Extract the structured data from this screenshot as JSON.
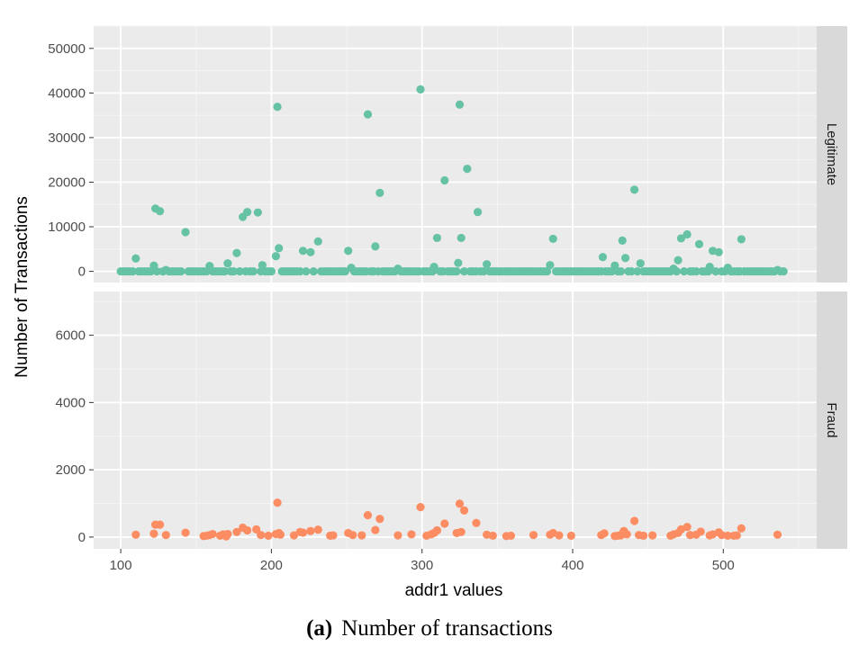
{
  "caption": {
    "label": "(a)",
    "text": "Number of transactions"
  },
  "chart_data": {
    "type": "scatter",
    "xlabel": "addr1 values",
    "ylabel": "Number of Transactions",
    "xlim": [
      82,
      562
    ],
    "x_ticks": [
      100,
      200,
      300,
      400,
      500
    ],
    "grid": true,
    "panels": [
      {
        "name": "Legitimate",
        "color": "#66c2a5",
        "ylim": [
          -2500,
          55000
        ],
        "y_ticks": [
          0,
          10000,
          20000,
          30000,
          40000,
          50000
        ],
        "points": [
          [
            100,
            0
          ],
          [
            102,
            0
          ],
          [
            104,
            0
          ],
          [
            106,
            0
          ],
          [
            108,
            0
          ],
          [
            110,
            2900
          ],
          [
            112,
            0
          ],
          [
            114,
            0
          ],
          [
            116,
            0
          ],
          [
            118,
            0
          ],
          [
            120,
            0
          ],
          [
            122,
            1300
          ],
          [
            123,
            14100
          ],
          [
            124,
            0
          ],
          [
            126,
            13500
          ],
          [
            128,
            0
          ],
          [
            130,
            300
          ],
          [
            132,
            0
          ],
          [
            134,
            0
          ],
          [
            136,
            0
          ],
          [
            138,
            0
          ],
          [
            140,
            0
          ],
          [
            143,
            8800
          ],
          [
            145,
            0
          ],
          [
            147,
            0
          ],
          [
            149,
            0
          ],
          [
            151,
            0
          ],
          [
            153,
            0
          ],
          [
            155,
            0
          ],
          [
            157,
            0
          ],
          [
            159,
            1200
          ],
          [
            161,
            0
          ],
          [
            163,
            0
          ],
          [
            165,
            0
          ],
          [
            167,
            0
          ],
          [
            169,
            0
          ],
          [
            171,
            1800
          ],
          [
            173,
            0
          ],
          [
            175,
            0
          ],
          [
            177,
            4100
          ],
          [
            179,
            0
          ],
          [
            181,
            12200
          ],
          [
            183,
            0
          ],
          [
            184,
            13300
          ],
          [
            186,
            0
          ],
          [
            188,
            0
          ],
          [
            191,
            13200
          ],
          [
            193,
            0
          ],
          [
            194,
            1400
          ],
          [
            196,
            0
          ],
          [
            198,
            0
          ],
          [
            200,
            0
          ],
          [
            203,
            3400
          ],
          [
            204,
            36900
          ],
          [
            205,
            5200
          ],
          [
            207,
            0
          ],
          [
            209,
            0
          ],
          [
            211,
            0
          ],
          [
            213,
            0
          ],
          [
            215,
            0
          ],
          [
            217,
            0
          ],
          [
            219,
            0
          ],
          [
            221,
            4600
          ],
          [
            223,
            0
          ],
          [
            226,
            4300
          ],
          [
            228,
            0
          ],
          [
            231,
            6700
          ],
          [
            233,
            0
          ],
          [
            235,
            0
          ],
          [
            237,
            0
          ],
          [
            239,
            0
          ],
          [
            241,
            0
          ],
          [
            243,
            0
          ],
          [
            245,
            0
          ],
          [
            247,
            0
          ],
          [
            249,
            0
          ],
          [
            251,
            4600
          ],
          [
            253,
            800
          ],
          [
            255,
            0
          ],
          [
            257,
            0
          ],
          [
            259,
            0
          ],
          [
            261,
            0
          ],
          [
            263,
            0
          ],
          [
            264,
            35200
          ],
          [
            266,
            0
          ],
          [
            268,
            0
          ],
          [
            269,
            5600
          ],
          [
            271,
            0
          ],
          [
            272,
            17600
          ],
          [
            274,
            0
          ],
          [
            276,
            0
          ],
          [
            278,
            0
          ],
          [
            280,
            0
          ],
          [
            282,
            0
          ],
          [
            284,
            600
          ],
          [
            286,
            0
          ],
          [
            288,
            0
          ],
          [
            290,
            0
          ],
          [
            292,
            0
          ],
          [
            294,
            0
          ],
          [
            296,
            0
          ],
          [
            298,
            0
          ],
          [
            299,
            40800
          ],
          [
            301,
            0
          ],
          [
            303,
            0
          ],
          [
            305,
            0
          ],
          [
            307,
            0
          ],
          [
            308,
            1000
          ],
          [
            310,
            7500
          ],
          [
            312,
            0
          ],
          [
            314,
            0
          ],
          [
            315,
            20400
          ],
          [
            317,
            0
          ],
          [
            319,
            0
          ],
          [
            321,
            0
          ],
          [
            323,
            0
          ],
          [
            324,
            1900
          ],
          [
            325,
            37400
          ],
          [
            326,
            7500
          ],
          [
            328,
            0
          ],
          [
            330,
            23000
          ],
          [
            332,
            0
          ],
          [
            334,
            0
          ],
          [
            336,
            0
          ],
          [
            337,
            13300
          ],
          [
            339,
            0
          ],
          [
            341,
            0
          ],
          [
            343,
            1600
          ],
          [
            345,
            0
          ],
          [
            347,
            0
          ],
          [
            349,
            0
          ],
          [
            351,
            0
          ],
          [
            353,
            0
          ],
          [
            355,
            0
          ],
          [
            357,
            0
          ],
          [
            359,
            0
          ],
          [
            361,
            0
          ],
          [
            363,
            0
          ],
          [
            365,
            0
          ],
          [
            367,
            0
          ],
          [
            369,
            0
          ],
          [
            371,
            0
          ],
          [
            373,
            0
          ],
          [
            375,
            0
          ],
          [
            377,
            0
          ],
          [
            379,
            0
          ],
          [
            381,
            0
          ],
          [
            383,
            0
          ],
          [
            385,
            1400
          ],
          [
            387,
            7300
          ],
          [
            389,
            0
          ],
          [
            391,
            0
          ],
          [
            393,
            0
          ],
          [
            395,
            0
          ],
          [
            397,
            0
          ],
          [
            399,
            0
          ],
          [
            401,
            0
          ],
          [
            403,
            0
          ],
          [
            405,
            0
          ],
          [
            407,
            0
          ],
          [
            409,
            0
          ],
          [
            411,
            0
          ],
          [
            413,
            0
          ],
          [
            415,
            0
          ],
          [
            417,
            0
          ],
          [
            419,
            0
          ],
          [
            420,
            3200
          ],
          [
            422,
            0
          ],
          [
            424,
            0
          ],
          [
            426,
            0
          ],
          [
            428,
            1300
          ],
          [
            430,
            0
          ],
          [
            432,
            0
          ],
          [
            433,
            6900
          ],
          [
            435,
            3000
          ],
          [
            437,
            0
          ],
          [
            439,
            0
          ],
          [
            441,
            18300
          ],
          [
            443,
            0
          ],
          [
            445,
            1800
          ],
          [
            447,
            0
          ],
          [
            449,
            0
          ],
          [
            451,
            0
          ],
          [
            453,
            0
          ],
          [
            455,
            0
          ],
          [
            457,
            0
          ],
          [
            459,
            0
          ],
          [
            461,
            0
          ],
          [
            463,
            0
          ],
          [
            465,
            0
          ],
          [
            467,
            600
          ],
          [
            469,
            0
          ],
          [
            470,
            2500
          ],
          [
            472,
            7400
          ],
          [
            474,
            0
          ],
          [
            476,
            8300
          ],
          [
            478,
            0
          ],
          [
            480,
            0
          ],
          [
            482,
            0
          ],
          [
            484,
            6100
          ],
          [
            486,
            0
          ],
          [
            488,
            0
          ],
          [
            490,
            0
          ],
          [
            491,
            1000
          ],
          [
            493,
            4600
          ],
          [
            495,
            0
          ],
          [
            497,
            4300
          ],
          [
            499,
            0
          ],
          [
            501,
            0
          ],
          [
            503,
            800
          ],
          [
            505,
            0
          ],
          [
            507,
            0
          ],
          [
            509,
            0
          ],
          [
            511,
            0
          ],
          [
            512,
            7200
          ],
          [
            514,
            0
          ],
          [
            516,
            0
          ],
          [
            518,
            0
          ],
          [
            520,
            0
          ],
          [
            522,
            0
          ],
          [
            524,
            0
          ],
          [
            526,
            0
          ],
          [
            528,
            0
          ],
          [
            530,
            0
          ],
          [
            532,
            0
          ],
          [
            534,
            0
          ],
          [
            536,
            300
          ],
          [
            538,
            0
          ],
          [
            540,
            0
          ]
        ]
      },
      {
        "name": "Fraud",
        "color": "#fc8d62",
        "ylim": [
          -350,
          7300
        ],
        "y_ticks": [
          0,
          2000,
          4000,
          6000
        ],
        "points": [
          [
            110,
            70
          ],
          [
            122,
            100
          ],
          [
            123,
            370
          ],
          [
            126,
            370
          ],
          [
            130,
            60
          ],
          [
            143,
            130
          ],
          [
            155,
            30
          ],
          [
            157,
            40
          ],
          [
            159,
            60
          ],
          [
            161,
            90
          ],
          [
            166,
            40
          ],
          [
            168,
            80
          ],
          [
            170,
            20
          ],
          [
            171,
            90
          ],
          [
            177,
            150
          ],
          [
            181,
            280
          ],
          [
            184,
            200
          ],
          [
            190,
            230
          ],
          [
            193,
            60
          ],
          [
            198,
            40
          ],
          [
            203,
            90
          ],
          [
            204,
            1020
          ],
          [
            205,
            120
          ],
          [
            206,
            70
          ],
          [
            215,
            50
          ],
          [
            219,
            150
          ],
          [
            221,
            130
          ],
          [
            226,
            180
          ],
          [
            231,
            220
          ],
          [
            239,
            40
          ],
          [
            241,
            50
          ],
          [
            251,
            120
          ],
          [
            254,
            60
          ],
          [
            260,
            50
          ],
          [
            264,
            650
          ],
          [
            269,
            210
          ],
          [
            272,
            540
          ],
          [
            284,
            50
          ],
          [
            293,
            80
          ],
          [
            299,
            890
          ],
          [
            303,
            40
          ],
          [
            306,
            80
          ],
          [
            308,
            120
          ],
          [
            310,
            200
          ],
          [
            315,
            400
          ],
          [
            323,
            120
          ],
          [
            325,
            990
          ],
          [
            326,
            150
          ],
          [
            328,
            790
          ],
          [
            336,
            420
          ],
          [
            343,
            70
          ],
          [
            347,
            40
          ],
          [
            356,
            30
          ],
          [
            359,
            40
          ],
          [
            374,
            60
          ],
          [
            385,
            70
          ],
          [
            387,
            120
          ],
          [
            391,
            50
          ],
          [
            399,
            40
          ],
          [
            419,
            60
          ],
          [
            421,
            110
          ],
          [
            428,
            30
          ],
          [
            430,
            40
          ],
          [
            432,
            50
          ],
          [
            433,
            100
          ],
          [
            434,
            180
          ],
          [
            436,
            80
          ],
          [
            441,
            480
          ],
          [
            444,
            60
          ],
          [
            447,
            40
          ],
          [
            453,
            50
          ],
          [
            465,
            40
          ],
          [
            467,
            80
          ],
          [
            470,
            120
          ],
          [
            472,
            230
          ],
          [
            476,
            300
          ],
          [
            478,
            60
          ],
          [
            482,
            70
          ],
          [
            485,
            160
          ],
          [
            491,
            50
          ],
          [
            493,
            80
          ],
          [
            497,
            140
          ],
          [
            499,
            60
          ],
          [
            503,
            40
          ],
          [
            507,
            40
          ],
          [
            509,
            50
          ],
          [
            512,
            260
          ],
          [
            536,
            70
          ]
        ]
      }
    ]
  }
}
